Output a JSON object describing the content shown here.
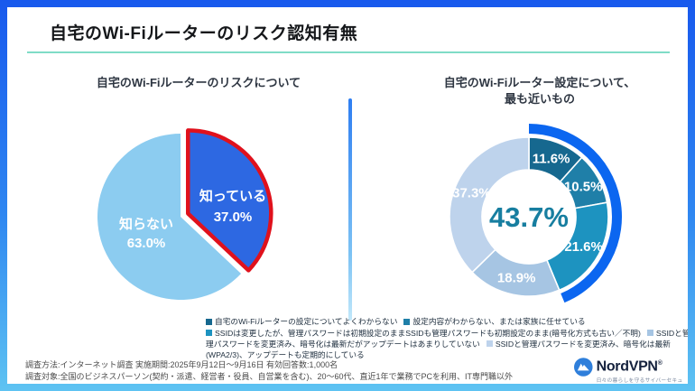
{
  "header": {
    "title": "自宅のWi-Fiルーターのリスク認知有無",
    "underline_color": "#7fdcc7"
  },
  "survey_note": {
    "line1": "調査方法:インターネット調査  実施期間:2025年9月12日～9月16日  有効回答数:1,000名",
    "line2": "調査対象:全国のビジネスパーソン(契約・派遣、経営者・役員、自営業を含む)、20～60代、直近1年で業務でPCを利用、IT専門職以外"
  },
  "brand": {
    "name": "NordVPN",
    "mark": "®",
    "tagline": "日々の暮らしを守るサイバーセキュリティ",
    "logo_color": "#2f7fdb",
    "text_color": "#14213d"
  },
  "chart_data": [
    {
      "type": "pie",
      "title": "自宅のWi-Fiルーターのリスクについて",
      "labels": [
        "知っている",
        "知らない"
      ],
      "values": [
        37.0,
        63.0
      ],
      "value_labels": [
        "37.0%",
        "63.0%"
      ],
      "colors": [
        "#2d68e2",
        "#8cccf0"
      ],
      "label_color": "#ffffff",
      "start_angle_deg": 0,
      "highlight": {
        "index": 0,
        "outline_color": "#e0111c",
        "exploded": true
      }
    },
    {
      "type": "donut",
      "title_line1": "自宅のWi-Fiルーター設定について、",
      "title_line2": "最も近いもの",
      "values": [
        11.6,
        10.5,
        21.6,
        18.9,
        37.3
      ],
      "value_labels": [
        "11.6%",
        "10.5%",
        "21.6%",
        "18.9%",
        "37.3%"
      ],
      "colors": [
        "#16688f",
        "#1f7fa8",
        "#1d93c0",
        "#a6c5e3",
        "#bed3ec"
      ],
      "label_color": "#ffffff",
      "center_label": "43.7%",
      "center_label_color": "#177ea0",
      "highlight_arc": {
        "from_pct": 0,
        "to_pct": 43.7,
        "color": "#0b66f0"
      },
      "legend": [
        {
          "marker": "#16688f",
          "text": "自宅のWi-Fiルーターの設定についてよくわからない"
        },
        {
          "marker": "#1f7fa8",
          "text": "設定内容がわからない、または家族に任せている"
        },
        {
          "marker": "#1d93c0",
          "text": "SSIDは変更したが、管理パスワードは初期設定のまま"
        },
        {
          "marker": null,
          "text": "SSIDも管理パスワードも初期設定のまま(暗号化方式も古い／不明)"
        },
        {
          "marker": "#a6c5e3",
          "text": "SSIDと管理パスワードを変更済み、暗号化は最新だがアップデートはあまりしていない"
        },
        {
          "marker": "#bed3ec",
          "text": "SSIDと管理パスワードを変更済み、暗号化は最新(WPA2/3)、アップデートも定期的にしている"
        }
      ]
    }
  ]
}
